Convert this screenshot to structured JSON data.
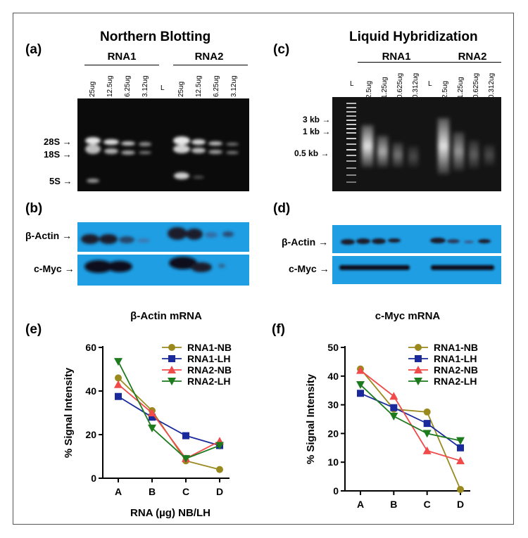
{
  "panel_a": {
    "label": "(a)",
    "title": "Northern Blotting",
    "group1": "RNA1",
    "group2": "RNA2",
    "lanes1": [
      "25ug",
      "12.5ug",
      "6.25ug",
      "3.12ug"
    ],
    "ladder": "L",
    "lanes2": [
      "25ug",
      "12.5ug",
      "6.25ug",
      "3.12ug"
    ],
    "markers": [
      "28S",
      "18S",
      "5S"
    ]
  },
  "panel_b": {
    "label": "(b)",
    "rows": [
      "β-Actin",
      "c-Myc"
    ]
  },
  "panel_c": {
    "label": "(c)",
    "title": "Liquid Hybridization",
    "group1": "RNA1",
    "group2": "RNA2",
    "ladder1": "L",
    "lanes1": [
      "2.5ug",
      "1.25ug",
      "0.625ug",
      "0.312ug"
    ],
    "ladder2": "L",
    "lanes2": [
      "2.5ug",
      "1.25ug",
      "0.625ug",
      "0.312ug"
    ],
    "markers": [
      "3 kb",
      "1 kb",
      "0.5 kb"
    ]
  },
  "panel_d": {
    "label": "(d)",
    "rows": [
      "β-Actin",
      "c-Myc"
    ]
  },
  "chart_data": [
    {
      "panel_label": "(e)",
      "type": "line",
      "title": "β-Actin mRNA",
      "xlabel": "RNA (µg) NB/LH",
      "ylabel": "% Signal Intensity",
      "categories": [
        "A",
        "B",
        "C",
        "D"
      ],
      "ylim": [
        0,
        60
      ],
      "yticks": [
        0,
        20,
        40,
        60
      ],
      "legend_position": "top-right",
      "series": [
        {
          "name": "RNA1-NB",
          "values": [
            46,
            31,
            8,
            4
          ],
          "color": "#9a8a1e",
          "marker": "circle"
        },
        {
          "name": "RNA1-LH",
          "values": [
            37.5,
            28,
            19.5,
            15
          ],
          "color": "#1a2a9c",
          "marker": "square"
        },
        {
          "name": "RNA2-NB",
          "values": [
            43,
            30,
            9,
            17
          ],
          "color": "#f04a4a",
          "marker": "triangle-up"
        },
        {
          "name": "RNA2-LH",
          "values": [
            53.5,
            23,
            9,
            15
          ],
          "color": "#1d7a1d",
          "marker": "triangle-down"
        }
      ]
    },
    {
      "panel_label": "(f)",
      "type": "line",
      "title": "c-Myc mRNA",
      "xlabel": "RNA (µg) NB/LH",
      "ylabel": "% Signal Intensity",
      "categories": [
        "A",
        "B",
        "C",
        "D"
      ],
      "ylim": [
        0,
        50
      ],
      "yticks": [
        0,
        10,
        20,
        30,
        40,
        50
      ],
      "legend_position": "top-right",
      "series": [
        {
          "name": "RNA1-NB",
          "values": [
            42.5,
            28.5,
            27.5,
            0.5
          ],
          "color": "#9a8a1e",
          "marker": "circle"
        },
        {
          "name": "RNA1-LH",
          "values": [
            34,
            29,
            23.5,
            15
          ],
          "color": "#1a2a9c",
          "marker": "square"
        },
        {
          "name": "RNA2-NB",
          "values": [
            42,
            33,
            14,
            10.5
          ],
          "color": "#f04a4a",
          "marker": "triangle-up"
        },
        {
          "name": "RNA2-LH",
          "values": [
            37,
            26,
            20,
            17.5
          ],
          "color": "#1d7a1d",
          "marker": "triangle-down"
        }
      ]
    }
  ]
}
